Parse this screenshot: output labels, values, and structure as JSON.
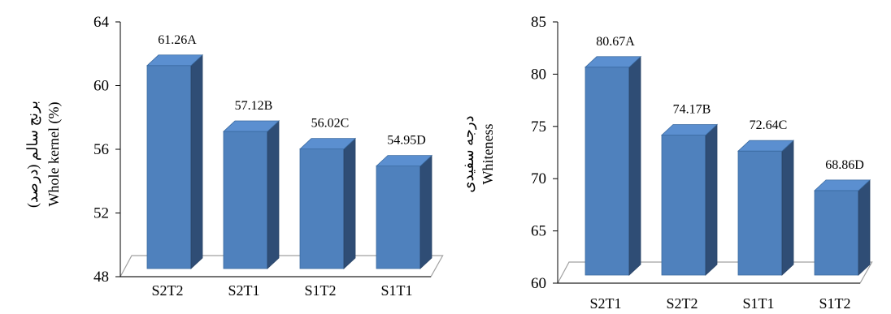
{
  "chart_data": [
    {
      "type": "bar",
      "categories": [
        "S2T2",
        "S2T1",
        "S1T2",
        "S1T1"
      ],
      "values": [
        61.26,
        57.12,
        56.02,
        54.95
      ],
      "data_labels": [
        "61.26A",
        "57.12B",
        "56.02C",
        "54.95D"
      ],
      "ylabel": "Whole  kernel  (%)",
      "ylabel_fa": "برنج سالم (درصد)",
      "ylim": [
        48,
        64
      ],
      "yticks": [
        "48",
        "52",
        "56",
        "60",
        "64"
      ],
      "grid": false,
      "colors": {
        "front": "#4f81bd",
        "side": "#2f4d75",
        "top": "#5b8fd0",
        "floor": "#ffffff",
        "floor_edge": "#a0a0a0"
      }
    },
    {
      "type": "bar",
      "categories": [
        "S2T1",
        "S2T2",
        "S1T1",
        "S1T2"
      ],
      "values": [
        80.67,
        74.17,
        72.64,
        68.86
      ],
      "data_labels": [
        "80.67A",
        "74.17B",
        "72.64C",
        "68.86D"
      ],
      "ylabel": "Whiteness",
      "ylabel_fa": "درجه سفیدی",
      "ylim": [
        60,
        85
      ],
      "yticks": [
        "60",
        "65",
        "70",
        "75",
        "80",
        "85"
      ],
      "grid": false,
      "colors": {
        "front": "#4f81bd",
        "side": "#2f4d75",
        "top": "#5b8fd0",
        "floor": "#ffffff",
        "floor_edge": "#a0a0a0"
      }
    }
  ]
}
